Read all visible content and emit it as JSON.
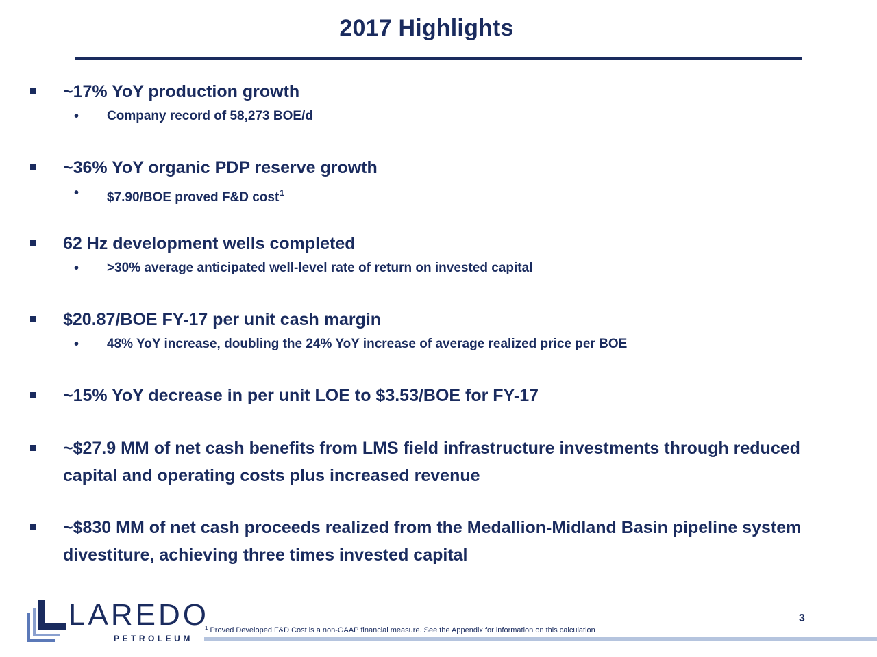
{
  "slide": {
    "title": "2017 Highlights",
    "bullets": [
      {
        "text": "~17% YoY production growth",
        "sub": [
          "Company record of 58,273 BOE/d"
        ]
      },
      {
        "text": "~36% YoY organic PDP reserve growth",
        "sub": [
          "$7.90/BOE proved F&D cost"
        ],
        "sub_footnote_ref": "1"
      },
      {
        "text": "62 Hz development wells completed",
        "sub": [
          ">30% average anticipated well-level rate of return on invested capital"
        ]
      },
      {
        "text": "$20.87/BOE FY-17 per unit cash margin",
        "sub": [
          "48% YoY increase, doubling the 24% YoY increase of average realized price per BOE"
        ]
      },
      {
        "text": "~15% YoY decrease in per unit LOE to $3.53/BOE for FY-17"
      },
      {
        "text": "~$27.9 MM of net cash benefits from LMS field infrastructure investments through reduced capital and operating costs plus increased revenue"
      },
      {
        "text": "~$830 MM of net cash proceeds realized from the Medallion-Midland Basin pipeline system divestiture, achieving three times invested capital"
      }
    ],
    "bullet_marker": "▪",
    "sub_marker": "•"
  },
  "footer": {
    "logo_name": "LAREDO",
    "logo_sub": "PETROLEUM",
    "footnote_num": "1",
    "footnote_text": "Proved Developed F&D Cost is a non-GAAP financial measure. See the Appendix for information on this calculation",
    "page_number": "3"
  },
  "colors": {
    "primary": "#1a2b5e",
    "accent_bar": "#b5c4de",
    "logo_light": "#5b79b8"
  }
}
